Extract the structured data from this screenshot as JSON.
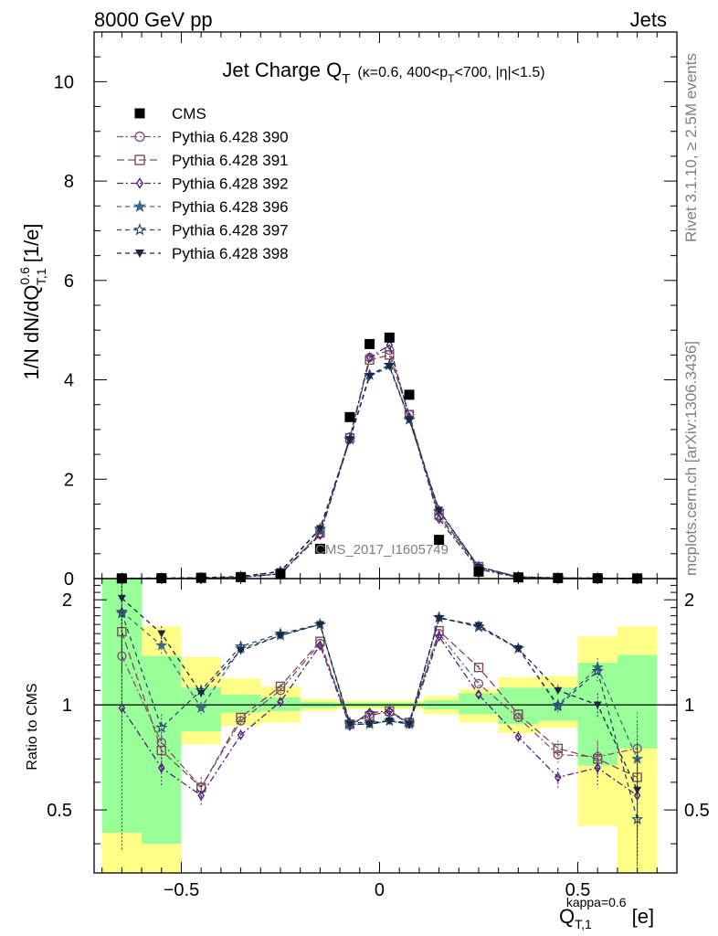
{
  "header": {
    "left": "8000 GeV pp",
    "right": "Jets"
  },
  "plot_title": {
    "main": "Jet Charge Q",
    "main_sub": "T",
    "cuts_a": "(κ=0.6, 400<p",
    "cuts_sub": "T",
    "cuts_b": "<700, |η|<1.5)"
  },
  "side_text": {
    "rivet": "Rivet 3.1.10, ≥ 2.5M events",
    "mcplots": "mcplots.cern.ch [arXiv:1306.3436]"
  },
  "analysis_label": "CMS_2017_I1605749",
  "y_label_main": {
    "pre": "1/N dN/dQ",
    "sup": "0.6",
    "sub": "T,1",
    "post": " [1/e]"
  },
  "y_label_ratio": "Ratio to CMS",
  "x_label": {
    "main": "Q",
    "sub": "T,1",
    "sup": "kappa=0.6",
    "unit": "[e]"
  },
  "colors": {
    "cms": "#000000",
    "p390": "#7a5878",
    "p391": "#7a4f57",
    "p392": "#4f2479",
    "p396": "#3f6a7f",
    "p397": "#2a4a6a",
    "p398": "#1a2744",
    "band_inner": "#99ff99",
    "band_outer": "#ffff88"
  },
  "chart_data": {
    "type": "scatter",
    "x": [
      -0.65,
      -0.55,
      -0.45,
      -0.35,
      -0.25,
      -0.15,
      -0.075,
      -0.025,
      0.025,
      0.075,
      0.15,
      0.25,
      0.35,
      0.45,
      0.55,
      0.65
    ],
    "xlim": [
      -0.72,
      0.75
    ],
    "xticks": [
      -0.5,
      0,
      0.5
    ],
    "xtick_labels": [
      "−0.5",
      "0",
      "0.5"
    ],
    "main_ylim": [
      0,
      11
    ],
    "main_yticks": [
      0,
      2,
      4,
      6,
      8,
      10
    ],
    "main_ytick_labels": [
      "0",
      "2",
      "4",
      "6",
      "8",
      "10"
    ],
    "ratio_ylim": [
      0.33,
      2.3
    ],
    "ratio_yticks": [
      0.5,
      1,
      2
    ],
    "ratio_ytick_labels": [
      "0.5",
      "1",
      "2"
    ],
    "legend_position": "top-left",
    "cms": {
      "name": "CMS",
      "values": [
        0.004,
        0.008,
        0.016,
        0.03,
        0.09,
        0.6,
        3.25,
        4.72,
        4.85,
        3.7,
        0.78,
        0.14,
        0.024,
        0.012,
        0.007,
        0.004
      ],
      "band_inner": [
        [
          0.43,
          2.3
        ],
        [
          0.4,
          1.38
        ],
        [
          0.84,
          1.12
        ],
        [
          0.95,
          1.07
        ],
        [
          0.96,
          1.05
        ],
        [
          0.98,
          1.02
        ],
        [
          0.985,
          1.015
        ],
        [
          0.985,
          1.015
        ],
        [
          0.985,
          1.015
        ],
        [
          0.985,
          1.015
        ],
        [
          0.97,
          1.03
        ],
        [
          0.94,
          1.08
        ],
        [
          0.88,
          1.12
        ],
        [
          0.9,
          1.12
        ],
        [
          0.67,
          1.32
        ],
        [
          0.75,
          1.39
        ]
      ],
      "band_outer": [
        [
          0.33,
          2.3
        ],
        [
          0.33,
          1.68
        ],
        [
          0.77,
          1.37
        ],
        [
          0.87,
          1.19
        ],
        [
          0.89,
          1.13
        ],
        [
          0.96,
          1.04
        ],
        [
          0.97,
          1.03
        ],
        [
          0.97,
          1.03
        ],
        [
          0.97,
          1.03
        ],
        [
          0.97,
          1.03
        ],
        [
          0.94,
          1.06
        ],
        [
          0.89,
          1.11
        ],
        [
          0.83,
          1.2
        ],
        [
          0.86,
          1.21
        ],
        [
          0.45,
          1.57
        ],
        [
          0.33,
          1.68
        ]
      ]
    },
    "series": [
      {
        "name": "Pythia 6.428 390",
        "marker": "circle-open",
        "dash": "7,3,2,3",
        "values": [
          0.0055,
          0.0062,
          0.0093,
          0.027,
          0.1,
          0.9,
          2.85,
          4.45,
          4.6,
          3.3,
          1.25,
          0.22,
          0.022,
          0.0085,
          0.005,
          0.003
        ],
        "ratio": [
          1.38,
          0.78,
          0.58,
          0.9,
          1.1,
          1.5,
          0.88,
          0.94,
          0.95,
          0.89,
          1.6,
          1.15,
          0.92,
          0.72,
          0.71,
          0.75
        ],
        "ratio_err": [
          0.6,
          0.08,
          0.04,
          0.03,
          0.02,
          0.02,
          0.02,
          0.02,
          0.02,
          0.02,
          0.02,
          0.02,
          0.03,
          0.04,
          0.08,
          0.2
        ]
      },
      {
        "name": "Pythia 6.428 391",
        "marker": "square-open",
        "dash": "8,4",
        "values": [
          0.0065,
          0.006,
          0.0093,
          0.027,
          0.1,
          0.92,
          2.83,
          4.4,
          4.5,
          3.3,
          1.28,
          0.24,
          0.023,
          0.009,
          0.005,
          0.003
        ],
        "ratio": [
          1.62,
          0.74,
          0.58,
          0.92,
          1.13,
          1.52,
          0.88,
          0.93,
          0.96,
          0.89,
          1.63,
          1.28,
          0.94,
          0.75,
          0.7,
          0.62
        ],
        "ratio_err": [
          0.6,
          0.08,
          0.04,
          0.03,
          0.02,
          0.02,
          0.02,
          0.02,
          0.02,
          0.02,
          0.02,
          0.02,
          0.03,
          0.04,
          0.08,
          0.2
        ]
      },
      {
        "name": "Pythia 6.428 392",
        "marker": "diamond-open",
        "dash": "7,3,2,3",
        "values": [
          0.0039,
          0.0053,
          0.0088,
          0.025,
          0.092,
          0.88,
          2.8,
          4.45,
          4.7,
          3.25,
          1.2,
          0.19,
          0.02,
          0.0075,
          0.0045,
          0.0025
        ],
        "ratio": [
          0.98,
          0.66,
          0.55,
          0.82,
          1.02,
          1.48,
          0.87,
          0.95,
          0.96,
          0.88,
          1.57,
          1.07,
          0.81,
          0.62,
          0.66,
          0.55
        ],
        "ratio_err": [
          0.6,
          0.08,
          0.04,
          0.03,
          0.02,
          0.02,
          0.02,
          0.02,
          0.02,
          0.02,
          0.02,
          0.02,
          0.03,
          0.04,
          0.08,
          0.2
        ]
      },
      {
        "name": "Pythia 6.428 396",
        "marker": "star-filled",
        "dash": "5,4",
        "values": [
          0.0073,
          0.0069,
          0.0157,
          0.043,
          0.14,
          1.0,
          2.8,
          4.1,
          4.3,
          3.2,
          1.36,
          0.24,
          0.035,
          0.012,
          0.009,
          0.003
        ],
        "ratio": [
          1.85,
          1.48,
          0.98,
          1.45,
          1.58,
          1.7,
          0.88,
          0.88,
          0.9,
          0.88,
          1.78,
          1.68,
          1.45,
          1.0,
          1.28,
          0.7
        ],
        "ratio_err": [
          0.6,
          0.08,
          0.04,
          0.03,
          0.02,
          0.02,
          0.02,
          0.02,
          0.02,
          0.02,
          0.02,
          0.02,
          0.03,
          0.04,
          0.08,
          0.2
        ]
      },
      {
        "name": "Pythia 6.428 397",
        "marker": "star-open",
        "dash": "5,4",
        "values": [
          0.0073,
          0.0069,
          0.0157,
          0.043,
          0.14,
          1.0,
          2.8,
          4.1,
          4.3,
          3.2,
          1.36,
          0.24,
          0.035,
          0.012,
          0.009,
          0.002
        ],
        "ratio": [
          1.83,
          0.86,
          1.1,
          1.47,
          1.6,
          1.7,
          0.89,
          0.89,
          0.9,
          0.89,
          1.78,
          1.67,
          1.45,
          0.99,
          1.25,
          0.47
        ],
        "ratio_err": [
          0.6,
          0.08,
          0.04,
          0.03,
          0.02,
          0.02,
          0.02,
          0.02,
          0.02,
          0.02,
          0.02,
          0.02,
          0.03,
          0.04,
          0.08,
          0.2
        ]
      },
      {
        "name": "Pythia 6.428 398",
        "marker": "triangle-down-filled",
        "dash": "5,4",
        "values": [
          0.008,
          0.0128,
          0.0173,
          0.043,
          0.143,
          1.01,
          2.8,
          4.07,
          4.27,
          3.2,
          1.38,
          0.23,
          0.035,
          0.0135,
          0.007,
          0.0023
        ],
        "ratio": [
          2.02,
          1.6,
          1.08,
          1.43,
          1.58,
          1.7,
          0.88,
          0.88,
          0.9,
          0.88,
          1.77,
          1.69,
          1.45,
          1.1,
          1.0,
          0.57
        ],
        "ratio_err": [
          0.6,
          0.08,
          0.04,
          0.03,
          0.02,
          0.02,
          0.02,
          0.02,
          0.02,
          0.02,
          0.02,
          0.02,
          0.03,
          0.04,
          0.08,
          0.2
        ]
      }
    ]
  }
}
